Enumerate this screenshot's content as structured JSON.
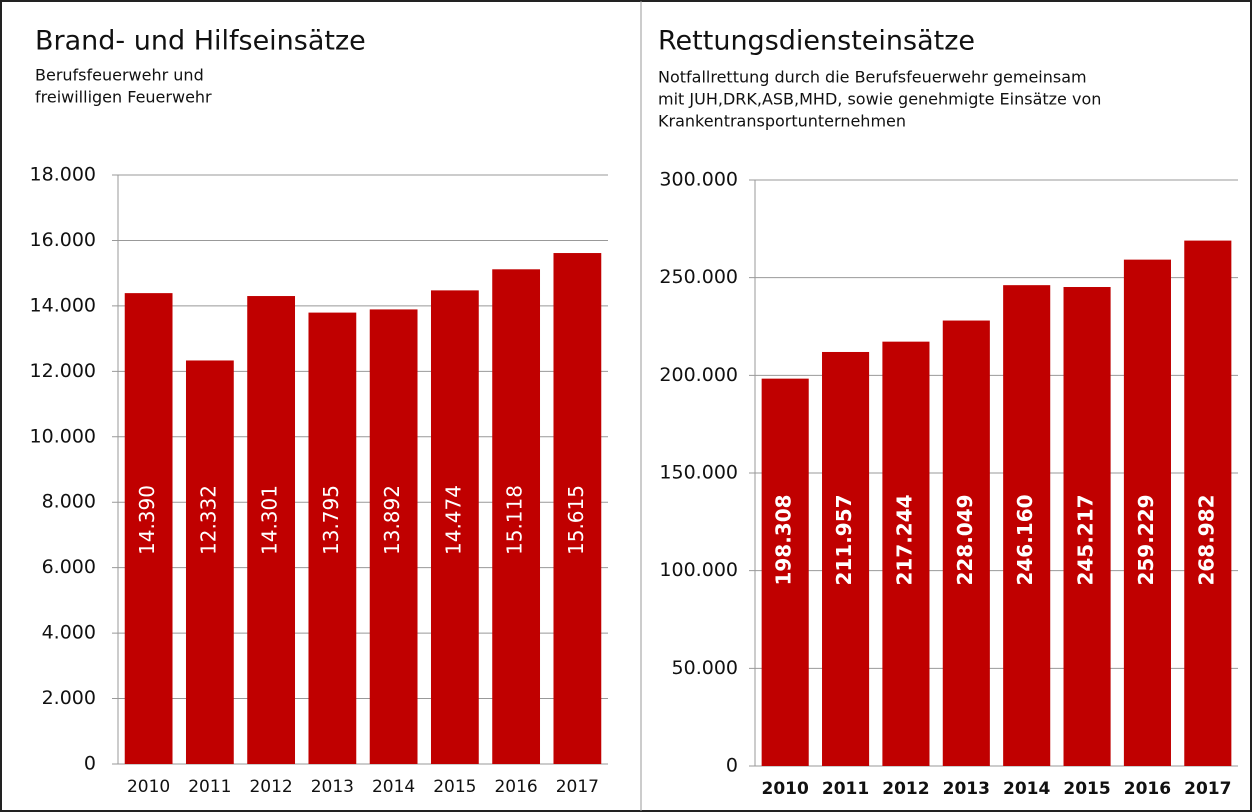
{
  "chart_data": [
    {
      "type": "bar",
      "title": "Brand- und Hilfseinsätze",
      "subtitle": [
        "Berufsfeuerwehr und",
        "freiwilligen Feuerwehr"
      ],
      "categories": [
        "2010",
        "2011",
        "2012",
        "2013",
        "2014",
        "2015",
        "2016",
        "2017"
      ],
      "values": [
        14390,
        12332,
        14301,
        13795,
        13892,
        14474,
        15118,
        15615
      ],
      "value_labels": [
        "14.390",
        "12.332",
        "14.301",
        "13.795",
        "13.892",
        "14.474",
        "15.118",
        "15.615"
      ],
      "color": "#c00000",
      "ylim": [
        0,
        18000
      ],
      "yticks": [
        0,
        {
          "value": 2000,
          "label": "2.000"
        },
        {
          "value": 4000,
          "label": "4.000"
        },
        {
          "value": 6000,
          "label": "6.000"
        },
        {
          "value": 8000,
          "label": "8.000"
        },
        {
          "value": 10000,
          "label": "10.000"
        },
        {
          "value": 12000,
          "label": "12.000"
        },
        {
          "value": 14000,
          "label": "14.000"
        },
        {
          "value": 16000,
          "label": "16.000"
        },
        {
          "value": 18000,
          "label": "18.000"
        }
      ],
      "grid": true
    },
    {
      "type": "bar",
      "title": "Rettungsdiensteinsätze",
      "subtitle": [
        "Notfallrettung durch die Berufsfeuerwehr gemeinsam",
        "mit JUH,DRK,ASB,MHD, sowie genehmigte Einsätze von",
        "Krankentransportunternehmen"
      ],
      "categories": [
        "2010",
        "2011",
        "2012",
        "2013",
        "2014",
        "2015",
        "2016",
        "2017"
      ],
      "values": [
        198308,
        211957,
        217244,
        228049,
        246160,
        245217,
        259229,
        268982
      ],
      "value_labels": [
        "198.308",
        "211.957",
        "217.244",
        "228.049",
        "246.160",
        "245.217",
        "259.229",
        "268.982"
      ],
      "color": "#c00000",
      "ylim": [
        0,
        300000
      ],
      "yticks": [
        0,
        {
          "value": 50000,
          "label": "50.000"
        },
        {
          "value": 100000,
          "label": "100.000"
        },
        {
          "value": 150000,
          "label": "150.000"
        },
        {
          "value": 200000,
          "label": "200.000"
        },
        {
          "value": 250000,
          "label": "250.000"
        },
        {
          "value": 300000,
          "label": "300.000"
        }
      ],
      "grid": true
    }
  ]
}
